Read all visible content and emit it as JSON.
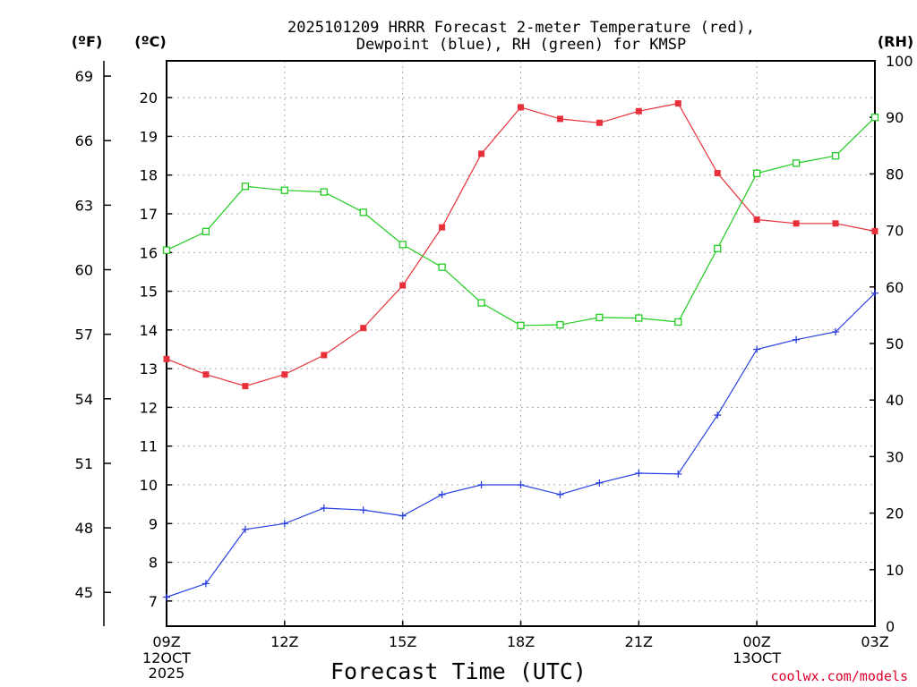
{
  "chart_data": {
    "type": "line",
    "title_line1": "2025101209 HRRR Forecast 2-meter Temperature (red),",
    "title_line2": "Dewpoint (blue), RH (green) for KMSP",
    "xlabel": "Forecast Time (UTC)",
    "credit": "coolwx.com/models",
    "units": {
      "fahrenheit": "(ºF)",
      "celsius": "(ºC)",
      "rh": "(RH)"
    },
    "x_hours": [
      0,
      1,
      2,
      3,
      4,
      5,
      6,
      7,
      8,
      9,
      10,
      11,
      12,
      13,
      14,
      15,
      16,
      17,
      18
    ],
    "xlim": [
      0,
      18
    ],
    "x_ticks": [
      {
        "hour": 0,
        "label": "09Z",
        "sub1": "12OCT",
        "sub2": "2025"
      },
      {
        "hour": 3,
        "label": "12Z",
        "sub1": "",
        "sub2": ""
      },
      {
        "hour": 6,
        "label": "15Z",
        "sub1": "",
        "sub2": ""
      },
      {
        "hour": 9,
        "label": "18Z",
        "sub1": "",
        "sub2": ""
      },
      {
        "hour": 12,
        "label": "21Z",
        "sub1": "",
        "sub2": ""
      },
      {
        "hour": 15,
        "label": "00Z",
        "sub1": "13OCT",
        "sub2": ""
      },
      {
        "hour": 18,
        "label": "03Z",
        "sub1": "",
        "sub2": ""
      }
    ],
    "celsius_axis": {
      "ylim": [
        6.35,
        20.95
      ],
      "ticks": [
        7,
        8,
        9,
        10,
        11,
        12,
        13,
        14,
        15,
        16,
        17,
        18,
        19,
        20
      ]
    },
    "fahrenheit_axis": {
      "ticks": [
        45,
        48,
        51,
        54,
        57,
        60,
        63,
        66,
        69
      ]
    },
    "rh_axis": {
      "ylim": [
        0,
        100
      ],
      "ticks": [
        0,
        10,
        20,
        30,
        40,
        50,
        60,
        70,
        80,
        90,
        100
      ]
    },
    "series": [
      {
        "name": "Temperature",
        "unit": "C",
        "color": "#e8303a",
        "marker": "filled-square",
        "values": [
          13.25,
          12.85,
          12.55,
          12.85,
          13.35,
          14.05,
          15.15,
          16.65,
          18.55,
          19.75,
          19.45,
          19.35,
          19.65,
          19.85,
          18.05,
          16.85,
          16.75,
          16.75,
          16.55
        ]
      },
      {
        "name": "Dewpoint",
        "unit": "C",
        "color": "#2a40e0",
        "marker": "plus",
        "values": [
          7.1,
          7.45,
          8.85,
          9.0,
          9.4,
          9.35,
          9.2,
          9.75,
          10.0,
          10.0,
          9.75,
          10.05,
          10.3,
          10.28,
          11.8,
          13.5,
          13.75,
          13.95,
          14.95
        ]
      },
      {
        "name": "RH",
        "unit": "%",
        "color": "#22cc22",
        "marker": "open-square",
        "values": [
          66.5,
          69.8,
          77.8,
          77.1,
          76.8,
          73.2,
          67.5,
          63.5,
          57.2,
          53.2,
          53.3,
          54.6,
          54.5,
          53.8,
          66.8,
          80.1,
          81.9,
          83.2,
          90.0
        ]
      }
    ]
  }
}
